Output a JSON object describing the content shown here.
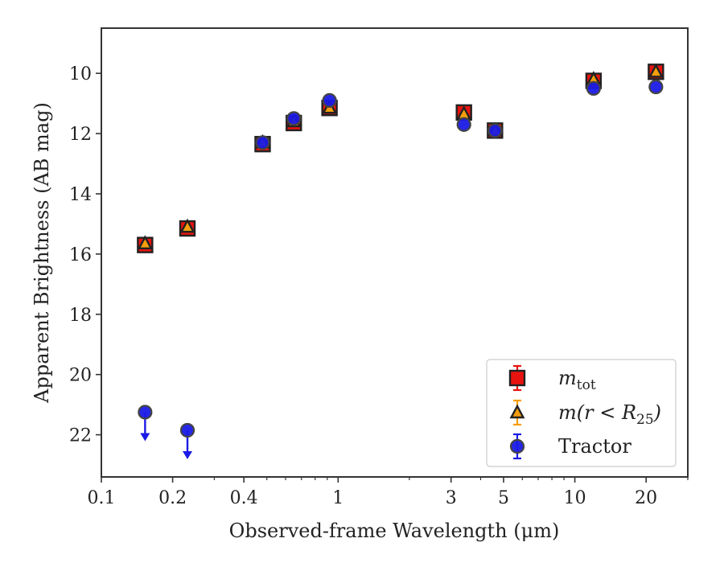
{
  "chart_data": {
    "type": "scatter",
    "xlabel": "Observed-frame Wavelength (μm)",
    "ylabel": "Apparent Brightness (AB mag)",
    "x_scale": "log",
    "xlim": [
      0.1,
      30
    ],
    "ylim": [
      23.4,
      8.5
    ],
    "y_inverted": true,
    "x_ticks": [
      {
        "value": 0.1,
        "label": "0.1"
      },
      {
        "value": 0.2,
        "label": "0.2"
      },
      {
        "value": 0.4,
        "label": "0.4"
      },
      {
        "value": 1,
        "label": "1"
      },
      {
        "value": 3,
        "label": "3"
      },
      {
        "value": 5,
        "label": "5"
      },
      {
        "value": 10,
        "label": "10"
      },
      {
        "value": 20,
        "label": "20"
      }
    ],
    "y_ticks": [
      {
        "value": 10,
        "label": "10"
      },
      {
        "value": 12,
        "label": "12"
      },
      {
        "value": 14,
        "label": "14"
      },
      {
        "value": 16,
        "label": "16"
      },
      {
        "value": 18,
        "label": "18"
      },
      {
        "value": 20,
        "label": "20"
      },
      {
        "value": 22,
        "label": "22"
      }
    ],
    "grid": false,
    "legend_position": "lower-right",
    "series": [
      {
        "name": "m_tot",
        "legend_label": "m",
        "legend_sub": "tot",
        "marker": "square",
        "color": "#e8130f",
        "points": [
          {
            "x": 0.153,
            "y": 15.7
          },
          {
            "x": 0.231,
            "y": 15.15
          },
          {
            "x": 0.48,
            "y": 12.35
          },
          {
            "x": 0.65,
            "y": 11.65
          },
          {
            "x": 0.92,
            "y": 11.15
          },
          {
            "x": 3.4,
            "y": 11.3
          },
          {
            "x": 4.6,
            "y": 11.9
          },
          {
            "x": 12.0,
            "y": 10.25
          },
          {
            "x": 22.0,
            "y": 9.95
          }
        ]
      },
      {
        "name": "m(r<R_25)",
        "legend_label": "m(r < R",
        "legend_sub": "25",
        "legend_suffix": ")",
        "marker": "triangle",
        "color": "#f59e0b",
        "points": [
          {
            "x": 0.153,
            "y": 15.65
          },
          {
            "x": 0.231,
            "y": 15.1
          },
          {
            "x": 0.48,
            "y": 12.3
          },
          {
            "x": 0.65,
            "y": 11.6
          },
          {
            "x": 0.92,
            "y": 11.15
          },
          {
            "x": 3.4,
            "y": 11.35
          },
          {
            "x": 4.6,
            "y": 11.9
          },
          {
            "x": 12.0,
            "y": 10.2
          },
          {
            "x": 22.0,
            "y": 9.95
          }
        ]
      },
      {
        "name": "Tractor",
        "legend_label": "Tractor",
        "marker": "circle",
        "color": "#1a1ae6",
        "points": [
          {
            "x": 0.153,
            "y": 21.25,
            "upper_limit": true
          },
          {
            "x": 0.231,
            "y": 21.85,
            "upper_limit": true
          },
          {
            "x": 0.48,
            "y": 12.3
          },
          {
            "x": 0.65,
            "y": 11.5
          },
          {
            "x": 0.92,
            "y": 10.9
          },
          {
            "x": 3.4,
            "y": 11.7
          },
          {
            "x": 4.6,
            "y": 11.9
          },
          {
            "x": 12.0,
            "y": 10.5
          },
          {
            "x": 22.0,
            "y": 10.45
          }
        ]
      }
    ]
  }
}
